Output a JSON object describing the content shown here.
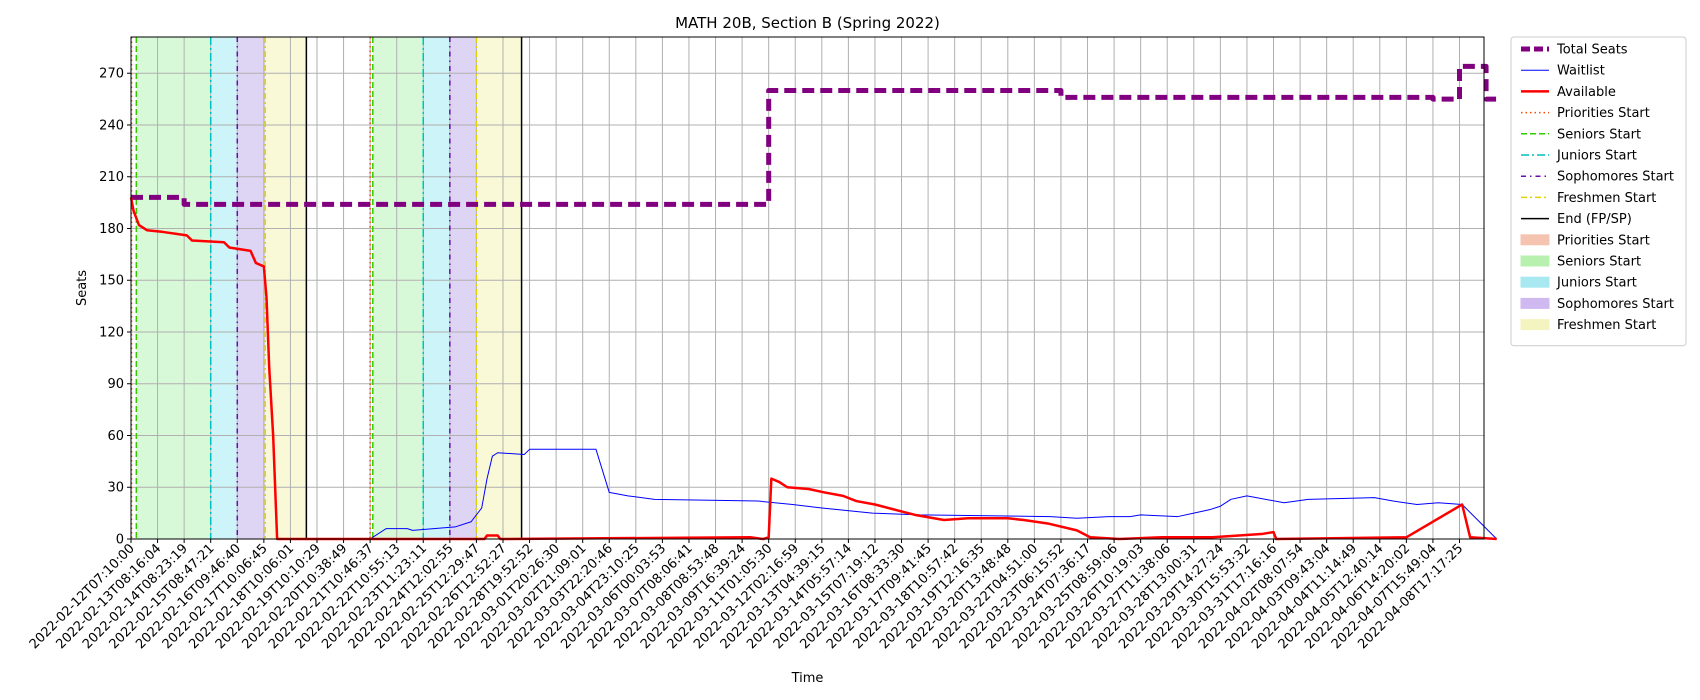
{
  "chart_data": {
    "type": "line",
    "title": "MATH 20B, Section B (Spring 2022)",
    "xlabel": "Time",
    "ylabel": "Seats",
    "ylim": [
      0,
      291
    ],
    "yticks": [
      0,
      30,
      60,
      90,
      120,
      150,
      180,
      210,
      240,
      270
    ],
    "grid": true,
    "legend_position": "outside upper right",
    "xlim": [
      "2022-02-12T07:10:00",
      "2022-04-09T00:00:00"
    ],
    "x_tick_labels": [
      "2022-02-12T07:10:00",
      "2022-02-13T08:16:04",
      "2022-02-14T08:23:19",
      "2022-02-15T08:47:21",
      "2022-02-16T09:46:40",
      "2022-02-17T10:06:45",
      "2022-02-18T10:06:01",
      "2022-02-19T10:10:29",
      "2022-02-20T10:38:49",
      "2022-02-21T10:46:37",
      "2022-02-22T10:55:13",
      "2022-02-23T11:23:11",
      "2022-02-24T12:02:55",
      "2022-02-25T12:29:47",
      "2022-02-26T12:52:27",
      "2022-02-28T19:52:52",
      "2022-03-01T20:26:30",
      "2022-03-02T21:09:01",
      "2022-03-03T22:20:46",
      "2022-03-04T23:10:25",
      "2022-03-06T00:03:53",
      "2022-03-07T08:06:41",
      "2022-03-08T08:53:48",
      "2022-03-09T16:39:24",
      "2022-03-11T01:05:30",
      "2022-03-12T02:16:59",
      "2022-03-13T04:39:15",
      "2022-03-14T05:57:14",
      "2022-03-15T07:19:12",
      "2022-03-16T08:33:30",
      "2022-03-17T09:41:45",
      "2022-03-18T10:57:42",
      "2022-03-19T12:16:35",
      "2022-03-20T13:48:48",
      "2022-03-22T04:51:00",
      "2022-03-23T06:15:52",
      "2022-03-24T07:36:17",
      "2022-03-25T08:59:06",
      "2022-03-26T10:19:03",
      "2022-03-27T11:38:06",
      "2022-03-28T13:00:31",
      "2022-03-29T14:27:24",
      "2022-03-30T15:53:32",
      "2022-03-31T17:16:16",
      "2022-04-02T08:07:54",
      "2022-04-03T09:43:04",
      "2022-04-04T11:14:49",
      "2022-04-05T12:40:14",
      "2022-04-06T14:20:02",
      "2022-04-07T15:49:04",
      "2022-04-08T17:17:25"
    ],
    "series": [
      {
        "name": "Total Seats",
        "color": "#800080",
        "style": "dashed",
        "width": 5,
        "points": [
          [
            0,
            198
          ],
          [
            2,
            198
          ],
          [
            2,
            194
          ],
          [
            24,
            194
          ],
          [
            24,
            260
          ],
          [
            35,
            260
          ],
          [
            35,
            256
          ],
          [
            49,
            256
          ],
          [
            49,
            255
          ],
          [
            50,
            255
          ],
          [
            50,
            274
          ],
          [
            51,
            274
          ],
          [
            51,
            255
          ],
          [
            51.4,
            255
          ]
        ]
      },
      {
        "name": "Waitlist",
        "color": "#0000ff",
        "style": "solid",
        "width": 1,
        "points": [
          [
            0,
            0
          ],
          [
            9,
            0
          ],
          [
            9.3,
            3
          ],
          [
            9.6,
            6
          ],
          [
            10.4,
            6
          ],
          [
            10.6,
            5
          ],
          [
            11.4,
            6
          ],
          [
            12.2,
            7
          ],
          [
            12.8,
            10
          ],
          [
            13.2,
            18
          ],
          [
            13.4,
            35
          ],
          [
            13.6,
            48
          ],
          [
            13.8,
            50
          ],
          [
            14.8,
            49
          ],
          [
            15,
            52
          ],
          [
            17,
            52
          ],
          [
            17.5,
            52
          ],
          [
            17.7,
            42
          ],
          [
            18,
            27
          ],
          [
            18.7,
            25
          ],
          [
            19.7,
            23
          ],
          [
            23.6,
            22
          ],
          [
            24.9,
            20
          ],
          [
            26,
            18
          ],
          [
            27.9,
            15
          ],
          [
            29.7,
            14
          ],
          [
            34.6,
            13
          ],
          [
            35.6,
            12
          ],
          [
            36.8,
            13
          ],
          [
            37.6,
            13
          ],
          [
            38,
            14
          ],
          [
            39.4,
            13
          ],
          [
            40,
            15
          ],
          [
            40.6,
            17
          ],
          [
            41,
            19
          ],
          [
            41.4,
            23
          ],
          [
            42,
            25
          ],
          [
            43.4,
            21
          ],
          [
            44.3,
            23
          ],
          [
            46.8,
            24
          ],
          [
            47.5,
            22
          ],
          [
            48.4,
            20
          ],
          [
            49.2,
            21
          ],
          [
            50.1,
            20
          ],
          [
            51.4,
            0
          ]
        ]
      },
      {
        "name": "Available",
        "color": "#ff0000",
        "style": "solid",
        "width": 2.5,
        "points": [
          [
            0,
            198
          ],
          [
            0.1,
            190
          ],
          [
            0.3,
            182
          ],
          [
            0.6,
            179
          ],
          [
            1.2,
            178
          ],
          [
            2.1,
            176
          ],
          [
            2.3,
            173
          ],
          [
            3.5,
            172
          ],
          [
            3.7,
            169
          ],
          [
            4.5,
            167
          ],
          [
            4.7,
            160
          ],
          [
            5.0,
            158
          ],
          [
            5.1,
            140
          ],
          [
            5.2,
            100
          ],
          [
            5.35,
            60
          ],
          [
            5.5,
            0
          ],
          [
            13.3,
            0
          ],
          [
            13.4,
            2
          ],
          [
            13.8,
            2
          ],
          [
            13.9,
            0
          ],
          [
            23.3,
            1
          ],
          [
            23.8,
            0
          ],
          [
            24.0,
            1
          ],
          [
            24.1,
            35
          ],
          [
            24.4,
            33
          ],
          [
            24.7,
            30
          ],
          [
            25.5,
            29
          ],
          [
            26.1,
            27
          ],
          [
            26.8,
            25
          ],
          [
            27.3,
            22
          ],
          [
            28.0,
            20
          ],
          [
            29.0,
            16
          ],
          [
            29.5,
            14
          ],
          [
            30.6,
            11
          ],
          [
            31.5,
            12
          ],
          [
            33.0,
            12
          ],
          [
            33.6,
            11
          ],
          [
            34.5,
            9
          ],
          [
            35.6,
            5
          ],
          [
            36.1,
            1
          ],
          [
            37.2,
            0
          ],
          [
            38.8,
            1
          ],
          [
            40.7,
            1
          ],
          [
            41.7,
            2
          ],
          [
            42.6,
            3
          ],
          [
            43.0,
            4
          ],
          [
            43.1,
            0
          ],
          [
            48.0,
            1
          ],
          [
            50.1,
            20
          ],
          [
            50.4,
            1
          ],
          [
            51.4,
            0
          ]
        ]
      }
    ],
    "regions": [
      {
        "name": "Seniors Start",
        "color": "#90ee90",
        "opacity": 0.35,
        "from": 0.2,
        "to": 3.0
      },
      {
        "name": "Juniors Start",
        "color": "#00c8e0",
        "opacity": 0.2,
        "from": 3.0,
        "to": 4.0
      },
      {
        "name": "Sophomores Start",
        "color": "#9370db",
        "opacity": 0.3,
        "from": 4.0,
        "to": 5.05
      },
      {
        "name": "Freshmen Start",
        "color": "#eeee90",
        "opacity": 0.35,
        "from": 5.05,
        "to": 6.6
      },
      {
        "name": "Seniors Start",
        "color": "#90ee90",
        "opacity": 0.35,
        "from": 9.1,
        "to": 11.0
      },
      {
        "name": "Juniors Start",
        "color": "#00c8e0",
        "opacity": 0.2,
        "from": 11.0,
        "to": 12.0
      },
      {
        "name": "Sophomores Start",
        "color": "#9370db",
        "opacity": 0.3,
        "from": 12.0,
        "to": 13.0
      },
      {
        "name": "Freshmen Start",
        "color": "#eeee90",
        "opacity": 0.35,
        "from": 13.0,
        "to": 14.7
      }
    ],
    "vlines": [
      {
        "name": "Priorities Start",
        "color": "#ff4500",
        "dash": "1.5,3",
        "at": 0.02
      },
      {
        "name": "Seniors Start",
        "color": "#33cc00",
        "dash": "6,3",
        "at": 0.2
      },
      {
        "name": "Juniors Start",
        "color": "#00bfbf",
        "dash": "8,3,2,3",
        "at": 3.0
      },
      {
        "name": "Sophomores Start",
        "color": "#6a0dad",
        "dash": "5,4,1.5,4",
        "at": 4.0
      },
      {
        "name": "Freshmen Start",
        "color": "#e6d200",
        "dash": "6,3,2,3",
        "at": 5.05
      },
      {
        "name": "End (FP/SP)",
        "color": "#000000",
        "dash": "",
        "at": 6.6
      },
      {
        "name": "Priorities Start",
        "color": "#ff4500",
        "dash": "1.5,3",
        "at": 9.0
      },
      {
        "name": "Seniors Start",
        "color": "#33cc00",
        "dash": "6,3",
        "at": 9.1
      },
      {
        "name": "Juniors Start",
        "color": "#00bfbf",
        "dash": "8,3,2,3",
        "at": 11.0
      },
      {
        "name": "Sophomores Start",
        "color": "#6a0dad",
        "dash": "5,4,1.5,4",
        "at": 12.0
      },
      {
        "name": "Freshmen Start",
        "color": "#e6d200",
        "dash": "6,3,2,3",
        "at": 13.0
      },
      {
        "name": "End (FP/SP)",
        "color": "#000000",
        "dash": "",
        "at": 14.7
      }
    ],
    "legend": [
      {
        "label": "Total Seats",
        "kind": "line",
        "color": "#800080",
        "width": 5,
        "dash": "9,4"
      },
      {
        "label": "Waitlist",
        "kind": "line",
        "color": "#0000ff",
        "width": 1,
        "dash": ""
      },
      {
        "label": "Available",
        "kind": "line",
        "color": "#ff0000",
        "width": 2.5,
        "dash": ""
      },
      {
        "label": "Priorities Start",
        "kind": "line",
        "color": "#ff4500",
        "width": 1.5,
        "dash": "1.5,3"
      },
      {
        "label": "Seniors Start",
        "kind": "line",
        "color": "#33cc00",
        "width": 1.5,
        "dash": "6,3"
      },
      {
        "label": "Juniors Start",
        "kind": "line",
        "color": "#00bfbf",
        "width": 1.5,
        "dash": "8,3,2,3"
      },
      {
        "label": "Sophomores Start",
        "kind": "line",
        "color": "#6a0dad",
        "width": 1.5,
        "dash": "5,4,1.5,4"
      },
      {
        "label": "Freshmen Start",
        "kind": "line",
        "color": "#e6d200",
        "width": 1.5,
        "dash": "6,3,2,3"
      },
      {
        "label": "End (FP/SP)",
        "kind": "line",
        "color": "#000000",
        "width": 1.5,
        "dash": ""
      },
      {
        "label": "Priorities Start",
        "kind": "patch",
        "color": "#f4c4b0"
      },
      {
        "label": "Seniors Start",
        "kind": "patch",
        "color": "#b8f0b0"
      },
      {
        "label": "Juniors Start",
        "kind": "patch",
        "color": "#a8e8f0"
      },
      {
        "label": "Sophomores Start",
        "kind": "patch",
        "color": "#d0b8f0"
      },
      {
        "label": "Freshmen Start",
        "kind": "patch",
        "color": "#f4f4c0"
      }
    ]
  }
}
